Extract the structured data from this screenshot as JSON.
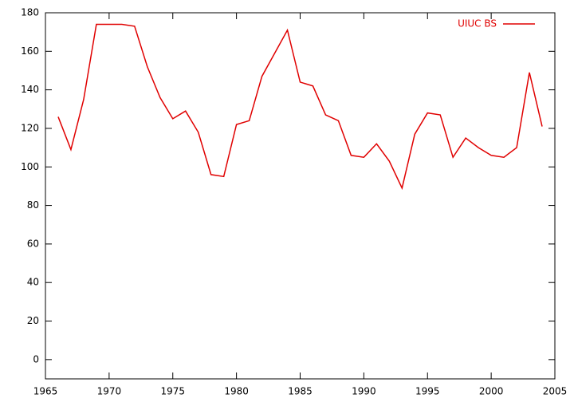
{
  "chart_data": {
    "type": "line",
    "x": [
      1966,
      1967,
      1968,
      1969,
      1970,
      1971,
      1972,
      1973,
      1974,
      1975,
      1976,
      1977,
      1978,
      1979,
      1980,
      1981,
      1982,
      1983,
      1984,
      1985,
      1986,
      1987,
      1988,
      1989,
      1990,
      1991,
      1992,
      1993,
      1994,
      1995,
      1996,
      1997,
      1998,
      1999,
      2000,
      2001,
      2002,
      2003,
      2004
    ],
    "series": [
      {
        "name": "UIUC BS",
        "color": "#e00000",
        "values": [
          126,
          109,
          135,
          174,
          174,
          174,
          173,
          152,
          136,
          125,
          129,
          118,
          96,
          95,
          122,
          124,
          147,
          159,
          171,
          144,
          142,
          127,
          124,
          106,
          105,
          112,
          103,
          89,
          117,
          128,
          127,
          105,
          115,
          110,
          106,
          105,
          110,
          149,
          121
        ]
      }
    ],
    "xlim": [
      1965,
      2005
    ],
    "xticks": [
      1965,
      1970,
      1975,
      1980,
      1985,
      1990,
      1995,
      2000,
      2005
    ],
    "ylim": [
      -10,
      180
    ],
    "yticks": [
      0,
      20,
      40,
      60,
      80,
      100,
      120,
      140,
      160,
      180
    ],
    "legend": "top-right"
  }
}
